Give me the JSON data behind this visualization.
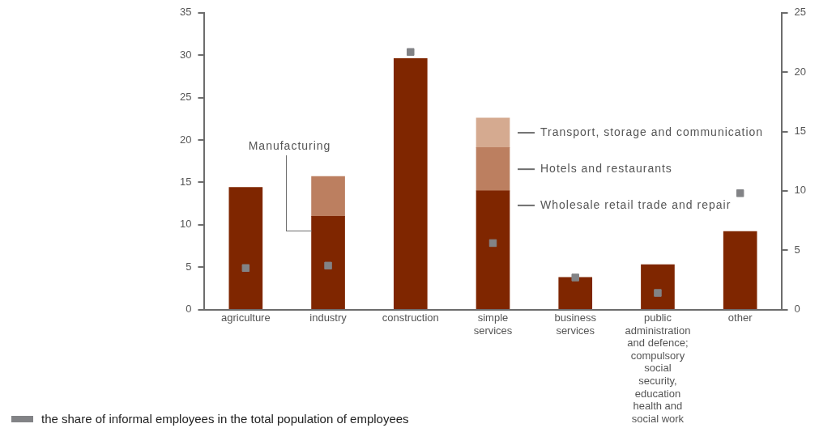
{
  "chart_data": {
    "type": "bar",
    "stacked": true,
    "categories": [
      "agriculture",
      "industry",
      "construction",
      "simple services",
      "business services",
      "public administration and defence; compulsory social security, education health and social work",
      "other"
    ],
    "series": [
      {
        "color": "#7f2600",
        "values": [
          14.4,
          11.0,
          29.6,
          14.0,
          3.8,
          5.3,
          9.2
        ]
      },
      {
        "color": "#bc7f60",
        "values": [
          null,
          4.7,
          null,
          5.1,
          null,
          null,
          null
        ]
      },
      {
        "color": "#d5aa90",
        "values": [
          null,
          null,
          null,
          3.5,
          null,
          null,
          null
        ]
      },
      {
        "type": "scatter",
        "axis": "y2",
        "name": "the share of informal employees in the total population of employees",
        "color": "#828386",
        "x": [
          "agriculture",
          "industry",
          "construction",
          "simple services",
          "business services",
          "public administration and defence; compulsory social security, education health and social work",
          "other"
        ],
        "values": [
          3.5,
          3.7,
          21.7,
          5.6,
          2.7,
          1.4,
          9.8
        ]
      }
    ],
    "ylim": [
      0,
      35
    ],
    "yticks": [
      0,
      5,
      10,
      15,
      20,
      25,
      30,
      35
    ],
    "y2lim": [
      0,
      25
    ],
    "y2ticks": [
      0,
      5,
      10,
      15,
      20,
      25
    ],
    "marker": "square",
    "grid": false,
    "legend": "bottom left",
    "annotations": [
      "Manufacturing",
      "Transport, storage and communication",
      "Hotels and restaurants",
      "Wholesale retail trade and repair"
    ]
  }
}
